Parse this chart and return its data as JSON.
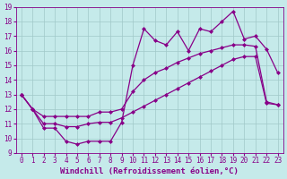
{
  "xlabel": "Windchill (Refroidissement éolien,°C)",
  "background_color": "#c5eaea",
  "grid_color": "#a0c8c8",
  "line_color": "#880088",
  "xlim": [
    -0.5,
    23.5
  ],
  "ylim": [
    9,
    19
  ],
  "xticks": [
    0,
    1,
    2,
    3,
    4,
    5,
    6,
    7,
    8,
    9,
    10,
    11,
    12,
    13,
    14,
    15,
    16,
    17,
    18,
    19,
    20,
    21,
    22,
    23
  ],
  "yticks": [
    9,
    10,
    11,
    12,
    13,
    14,
    15,
    16,
    17,
    18,
    19
  ],
  "line1_x": [
    0,
    1,
    2,
    3,
    4,
    5,
    6,
    7,
    8,
    9,
    10,
    11,
    12,
    13,
    14,
    15,
    16,
    17,
    18,
    19,
    20,
    21,
    22,
    23
  ],
  "line1_y": [
    13.0,
    12.0,
    10.7,
    10.7,
    9.8,
    9.6,
    9.8,
    9.8,
    9.8,
    11.1,
    15.0,
    17.5,
    16.7,
    16.4,
    17.3,
    16.0,
    17.5,
    17.3,
    18.0,
    18.7,
    16.8,
    17.0,
    16.1,
    14.5
  ],
  "line2_x": [
    0,
    1,
    2,
    3,
    4,
    5,
    6,
    7,
    8,
    9,
    10,
    11,
    12,
    13,
    14,
    15,
    16,
    17,
    18,
    19,
    20,
    21,
    22,
    23
  ],
  "line2_y": [
    13.0,
    12.0,
    11.5,
    11.5,
    11.5,
    11.5,
    11.5,
    11.8,
    11.8,
    12.0,
    13.2,
    14.0,
    14.5,
    14.8,
    15.2,
    15.5,
    15.8,
    16.0,
    16.2,
    16.4,
    16.4,
    16.3,
    12.5,
    12.3
  ],
  "line3_x": [
    0,
    1,
    2,
    3,
    4,
    5,
    6,
    7,
    8,
    9,
    10,
    11,
    12,
    13,
    14,
    15,
    16,
    17,
    18,
    19,
    20,
    21,
    22,
    23
  ],
  "line3_y": [
    13.0,
    12.0,
    11.0,
    11.0,
    10.8,
    10.8,
    11.0,
    11.1,
    11.1,
    11.4,
    11.8,
    12.2,
    12.6,
    13.0,
    13.4,
    13.8,
    14.2,
    14.6,
    15.0,
    15.4,
    15.6,
    15.6,
    12.4,
    12.3
  ],
  "marker": "D",
  "markersize": 2.0,
  "linewidth": 0.9,
  "xlabel_fontsize": 6.5,
  "tick_fontsize": 5.5
}
